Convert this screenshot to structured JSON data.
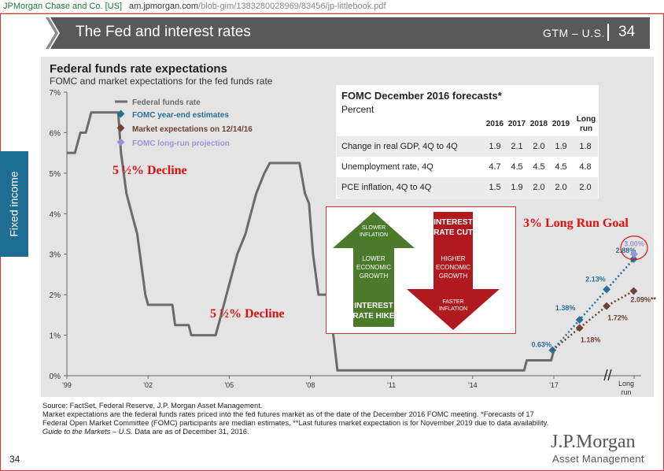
{
  "browser": {
    "site_name": "JPMorgan Chase and Co. [US]",
    "url_domain": "am.jpmorgan.com",
    "url_path": "/blob-gim/1383280028969/83456/jp-littlebook.pdf"
  },
  "header": {
    "title": "The Fed and interest rates",
    "tag": "GTM – U.S.",
    "page": "34"
  },
  "side_tab": "Fixed income",
  "chart": {
    "title": "Federal funds rate expectations",
    "subtitle": "FOMC and market expectations for the fed funds rate"
  },
  "legend": {
    "item1": "Federal funds rate",
    "item2": "FOMC year-end estimates",
    "item3": "Market expectations on 12/14/16",
    "item4": "FOMC long-run projection"
  },
  "forecast_table": {
    "title": "FOMC December 2016 forecasts*",
    "subtitle": "Percent",
    "headers": [
      "2016",
      "2017",
      "2018",
      "2019",
      "Long",
      "run"
    ],
    "rows": [
      {
        "label": "Change in real GDP, 4Q to 4Q",
        "values": [
          "1.9",
          "2.1",
          "2.0",
          "1.9",
          "1.8"
        ]
      },
      {
        "label": "Unemployment rate, 4Q",
        "values": [
          "4.7",
          "4.5",
          "4.5",
          "4.5",
          "4.8"
        ]
      },
      {
        "label": "PCE inflation, 4Q to 4Q",
        "values": [
          "1.5",
          "1.9",
          "2.0",
          "2.0",
          "2.0"
        ]
      }
    ]
  },
  "arrows": {
    "green_top": "SLOWER",
    "green_top2": "INFLATION",
    "green_mid1": "LOWER",
    "green_mid2": "ECONOMIC",
    "green_mid3": "GROWTH",
    "green_bottom1": "INTEREST",
    "green_bottom2": "RATE HIKE",
    "red_top1": "INTEREST",
    "red_top2": "RATE CUT",
    "red_mid1": "HIGHER",
    "red_mid2": "ECONOMIC",
    "red_mid3": "GROWTH",
    "red_bottom1": "FASTER",
    "red_bottom2": "INFLATION",
    "green_color": "#4a7a2a",
    "red_color": "#b0191e"
  },
  "annotations": {
    "decline1": "5 ½% Decline",
    "decline2": "5 ½% Decline",
    "long_run_goal": "3% Long Run Goal"
  },
  "chart_data": {
    "type": "line",
    "title": "Federal funds rate expectations",
    "subtitle": "FOMC and market expectations for the fed funds rate",
    "x_tick_labels": [
      "'99",
      "'02",
      "'05",
      "'08",
      "'11",
      "'14",
      "'17",
      "Long run"
    ],
    "y_tick_labels": [
      "0%",
      "1%",
      "2%",
      "3%",
      "4%",
      "5%",
      "6%",
      "7%"
    ],
    "ylim": [
      0,
      7
    ],
    "xlim": [
      1999,
      2019.9
    ],
    "grid": false,
    "legend_position": "top-left",
    "series": [
      {
        "name": "Federal funds rate",
        "color": "#6b6b6b",
        "points": [
          [
            1999.0,
            5.5
          ],
          [
            1999.3,
            5.5
          ],
          [
            1999.5,
            6.0
          ],
          [
            1999.7,
            6.0
          ],
          [
            1999.9,
            6.5
          ],
          [
            2000.5,
            6.5
          ],
          [
            2000.9,
            6.5
          ],
          [
            2001.0,
            5.5
          ],
          [
            2001.2,
            4.5
          ],
          [
            2001.4,
            4.0
          ],
          [
            2001.6,
            3.5
          ],
          [
            2001.8,
            2.5
          ],
          [
            2001.9,
            2.0
          ],
          [
            2002.0,
            1.75
          ],
          [
            2002.9,
            1.75
          ],
          [
            2003.0,
            1.25
          ],
          [
            2003.5,
            1.25
          ],
          [
            2003.6,
            1.0
          ],
          [
            2004.5,
            1.0
          ],
          [
            2004.6,
            1.25
          ],
          [
            2004.8,
            1.75
          ],
          [
            2004.9,
            2.0
          ],
          [
            2005.1,
            2.5
          ],
          [
            2005.3,
            3.0
          ],
          [
            2005.6,
            3.5
          ],
          [
            2005.8,
            4.0
          ],
          [
            2006.0,
            4.5
          ],
          [
            2006.3,
            5.0
          ],
          [
            2006.5,
            5.25
          ],
          [
            2007.6,
            5.25
          ],
          [
            2007.8,
            4.5
          ],
          [
            2007.95,
            4.25
          ],
          [
            2008.1,
            3.0
          ],
          [
            2008.3,
            2.0
          ],
          [
            2008.75,
            2.0
          ],
          [
            2008.85,
            1.0
          ],
          [
            2009.0,
            0.13
          ],
          [
            2015.9,
            0.13
          ],
          [
            2016.0,
            0.38
          ],
          [
            2016.9,
            0.38
          ],
          [
            2017.0,
            0.63
          ]
        ]
      },
      {
        "name": "FOMC year-end estimates",
        "color": "#2a6f97",
        "points": [
          [
            2016.95,
            0.63
          ],
          [
            2017.95,
            1.38
          ],
          [
            2018.95,
            2.13
          ],
          [
            2019.95,
            2.88
          ]
        ],
        "labels": [
          "0.63%",
          "1.38%",
          "2.13%",
          "2.88%"
        ]
      },
      {
        "name": "Market expectations on 12/14/16",
        "color": "#6e4334",
        "points": [
          [
            2016.95,
            0.63
          ],
          [
            2017.95,
            1.18
          ],
          [
            2018.95,
            1.72
          ],
          [
            2019.95,
            2.09
          ]
        ],
        "labels": [
          "1.18%",
          "1.72%",
          "2.09%**"
        ]
      },
      {
        "name": "FOMC long-run projection",
        "color": "#9a93d6",
        "points": [
          [
            "Long run",
            3.0
          ]
        ],
        "labels": [
          "3.00%"
        ]
      }
    ]
  },
  "source": {
    "line1": "Source: FactSet, Federal Reserve, J.P. Morgan Asset Management.",
    "line2": "Market expectations are the federal funds rates priced into the fed futures market as of the date of the December 2016 FOMC meeting. *Forecasts of 17",
    "line3": "Federal Open Market Committee (FOMC) participants are median estimates. **Last futures market expectation is for November 2019 due to data availability.",
    "line4_italic": "Guide to the Markets – U.S.",
    "line4_rest": " Data are as of December 31, 2016."
  },
  "brand": {
    "name": "J.P.Morgan",
    "sub": "Asset Management"
  },
  "page_number": "34"
}
